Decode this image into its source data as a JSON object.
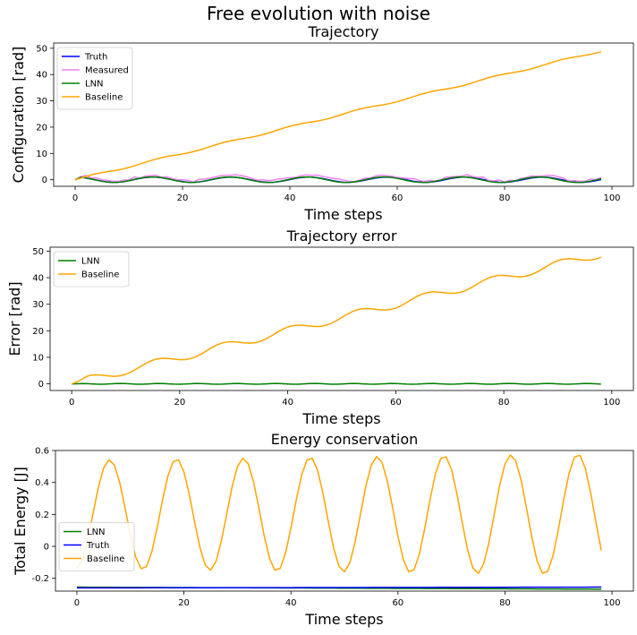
{
  "figure": {
    "suptitle": "Free evolution with noise"
  },
  "chart_data": [
    {
      "type": "line",
      "title": "Trajectory",
      "xlabel": "Time steps",
      "ylabel": "Configuration [rad]",
      "xlim": [
        -4,
        104
      ],
      "ylim": [
        -2.5,
        52
      ],
      "xticks": [
        0,
        20,
        40,
        60,
        80,
        100
      ],
      "yticks": [
        0,
        10,
        20,
        30,
        40,
        50
      ],
      "grid": false,
      "legend": "top-left",
      "series": [
        {
          "name": "Truth",
          "color": "#0000ff",
          "gen": {
            "kind": "cos",
            "amp": 1.0,
            "period": 14.5,
            "offset": 0,
            "slope": 0
          }
        },
        {
          "name": "Measured",
          "color": "#ee82ee",
          "gen": {
            "kind": "noisy",
            "amp": 1.0,
            "period": 14.5,
            "offset": 0.55,
            "noise": 0.5
          }
        },
        {
          "name": "LNN",
          "color": "#008000",
          "gen": {
            "kind": "cos",
            "amp": 1.05,
            "period": 14.4,
            "offset": 0,
            "slope": 0
          }
        },
        {
          "name": "Baseline",
          "color": "#ffa500",
          "gen": {
            "kind": "ramp",
            "slope": 0.5,
            "wob_amp": 0.35,
            "wob_period": 12.5
          }
        }
      ]
    },
    {
      "type": "line",
      "title": "Trajectory error",
      "xlabel": "Time steps",
      "ylabel": "Error [rad]",
      "xlim": [
        -4,
        104
      ],
      "ylim": [
        -2.5,
        51.5
      ],
      "xticks": [
        0,
        20,
        40,
        60,
        80,
        100
      ],
      "yticks": [
        0,
        10,
        20,
        30,
        40,
        50
      ],
      "grid": false,
      "legend": "top-left",
      "series": [
        {
          "name": "LNN",
          "color": "#008000",
          "gen": {
            "kind": "smallwave",
            "amp": 0.15,
            "period": 7.2
          }
        },
        {
          "name": "Baseline",
          "color": "#ffa500",
          "gen": {
            "kind": "ramp",
            "slope": 0.5,
            "wob_amp": 1.5,
            "wob_period": 12.5
          }
        }
      ]
    },
    {
      "type": "line",
      "title": "Energy conservation",
      "xlabel": "Time steps",
      "ylabel": "Total Energy [J]",
      "xlim": [
        -4,
        104
      ],
      "ylim": [
        -0.28,
        0.6
      ],
      "xticks": [
        0,
        20,
        40,
        60,
        80,
        100
      ],
      "yticks": [
        -0.2,
        0.0,
        0.2,
        0.4,
        0.6
      ],
      "grid": false,
      "legend": "center-left",
      "series": [
        {
          "name": "LNN",
          "color": "#008000",
          "gen": {
            "kind": "linear",
            "y0": -0.255,
            "y1": -0.268
          }
        },
        {
          "name": "Truth",
          "color": "#0000ff",
          "gen": {
            "kind": "linear",
            "y0": -0.26,
            "y1": -0.255
          }
        },
        {
          "name": "Baseline",
          "color": "#ffa500",
          "gen": {
            "kind": "energy",
            "center": 0.2,
            "amp": 0.34,
            "period": 12.5,
            "phase": 1.5,
            "amp_growth": 0.0004
          }
        }
      ]
    }
  ]
}
